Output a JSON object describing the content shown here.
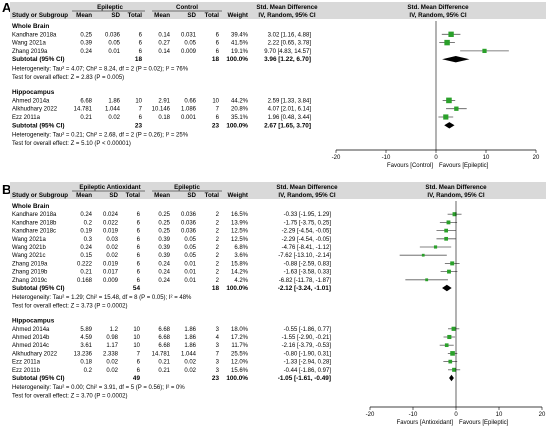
{
  "chart_data": [
    {
      "type": "forest",
      "panel_label": "A",
      "headers": {
        "study": "Study or Subgroup",
        "group1": "Epileptic",
        "group2": "Control",
        "mean": "Mean",
        "sd": "SD",
        "total": "Total",
        "weight": "Weight",
        "effect_title": "Std. Mean Difference",
        "effect_subtitle": "IV, Random, 95% CI"
      },
      "axis": {
        "min": -20,
        "max": 20,
        "ticks": [
          -20,
          -10,
          0,
          10,
          20
        ],
        "tick_labels": [
          "-20",
          "-10",
          "0",
          "10",
          "20"
        ],
        "left_label": "Favours [Control]",
        "right_label": "Favours [Epileptic]"
      },
      "groups": [
        {
          "name": "Whole Brain",
          "studies": [
            {
              "study": "Kandhare 2018a",
              "m1": "0.25",
              "sd1": "0.036",
              "n1": "6",
              "m2": "0.14",
              "sd2": "0.031",
              "n2": "6",
              "weight": "39.4%",
              "ci_text": "3.02 [1.16, 4.88]",
              "smd": 3.02,
              "lo": 1.16,
              "hi": 4.88,
              "w": 39.4
            },
            {
              "study": "Wang 2021a",
              "m1": "0.39",
              "sd1": "0.05",
              "n1": "6",
              "m2": "0.27",
              "sd2": "0.05",
              "n2": "6",
              "weight": "41.5%",
              "ci_text": "2.22 [0.65, 3.78]",
              "smd": 2.22,
              "lo": 0.65,
              "hi": 3.78,
              "w": 41.5
            },
            {
              "study": "Zhang 2019a",
              "m1": "0.24",
              "sd1": "0.01",
              "n1": "6",
              "m2": "0.14",
              "sd2": "0.009",
              "n2": "6",
              "weight": "19.1%",
              "ci_text": "9.70 [4.83, 14.57]",
              "smd": 9.7,
              "lo": 4.83,
              "hi": 14.57,
              "w": 19.1
            }
          ],
          "subtotal": {
            "label": "Subtotal (95% CI)",
            "n1": "18",
            "n2": "18",
            "weight": "100.0%",
            "ci_text": "3.96 [1.22, 6.70]",
            "smd": 3.96,
            "lo": 1.22,
            "hi": 6.7
          },
          "heterogeneity": "Heterogeneity: Tau² = 4.07; Chi² = 8.24, df = 2 (P = 0.02); I² = 76%",
          "overall_test": "Test for overall effect: Z = 2.83 (P = 0.005)"
        },
        {
          "name": "Hippocampus",
          "studies": [
            {
              "study": "Ahmed 2014a",
              "m1": "6.68",
              "sd1": "1.86",
              "n1": "10",
              "m2": "2.91",
              "sd2": "0.66",
              "n2": "10",
              "weight": "44.2%",
              "ci_text": "2.59 [1.33, 3.84]",
              "smd": 2.59,
              "lo": 1.33,
              "hi": 3.84,
              "w": 44.2
            },
            {
              "study": "Alkhudhary 2022",
              "m1": "14.781",
              "sd1": "1.044",
              "n1": "7",
              "m2": "10.146",
              "sd2": "1.086",
              "n2": "7",
              "weight": "20.8%",
              "ci_text": "4.07 [2.01, 6.14]",
              "smd": 4.07,
              "lo": 2.01,
              "hi": 6.14,
              "w": 20.8
            },
            {
              "study": "Ezz 2011a",
              "m1": "0.21",
              "sd1": "0.02",
              "n1": "6",
              "m2": "0.18",
              "sd2": "0.001",
              "n2": "6",
              "weight": "35.1%",
              "ci_text": "1.96 [0.48, 3.44]",
              "smd": 1.96,
              "lo": 0.48,
              "hi": 3.44,
              "w": 35.1
            }
          ],
          "subtotal": {
            "label": "Subtotal (95% CI)",
            "n1": "23",
            "n2": "23",
            "weight": "100.0%",
            "ci_text": "2.67 [1.65, 3.70]",
            "smd": 2.67,
            "lo": 1.65,
            "hi": 3.7
          },
          "heterogeneity": "Heterogeneity: Tau² = 0.21; Chi² = 2.68, df = 2 (P = 0.26); I² = 25%",
          "overall_test": "Test for overall effect: Z = 5.10 (P < 0.00001)"
        }
      ]
    },
    {
      "type": "forest",
      "panel_label": "B",
      "headers": {
        "study": "Study or Subgroup",
        "group1": "Epileptic Antioxidant",
        "group2": "Epileptic",
        "mean": "Mean",
        "sd": "SD",
        "total": "Total",
        "weight": "Weight",
        "effect_title": "Std. Mean Difference",
        "effect_subtitle": "IV, Random, 95% CI"
      },
      "axis": {
        "min": -20,
        "max": 20,
        "ticks": [
          -20,
          -10,
          0,
          10,
          20
        ],
        "tick_labels": [
          "-20",
          "-10",
          "0",
          "10",
          "20"
        ],
        "left_label": "Favours [Antioxidant]",
        "right_label": "Favours [Epileptic]"
      },
      "groups": [
        {
          "name": "Whole Brain",
          "studies": [
            {
              "study": "Kandhare 2018a",
              "m1": "0.24",
              "sd1": "0.024",
              "n1": "6",
              "m2": "0.25",
              "sd2": "0.036",
              "n2": "2",
              "weight": "16.5%",
              "ci_text": "-0.33 [-1.95, 1.29]",
              "smd": -0.33,
              "lo": -1.95,
              "hi": 1.29,
              "w": 16.5
            },
            {
              "study": "Kandhare 2018b",
              "m1": "0.2",
              "sd1": "0.022",
              "n1": "6",
              "m2": "0.25",
              "sd2": "0.036",
              "n2": "2",
              "weight": "13.9%",
              "ci_text": "-1.75 [-3.75, 0.25]",
              "smd": -1.75,
              "lo": -3.75,
              "hi": 0.25,
              "w": 13.9
            },
            {
              "study": "Kandhare 2018c",
              "m1": "0.19",
              "sd1": "0.019",
              "n1": "6",
              "m2": "0.25",
              "sd2": "0.036",
              "n2": "2",
              "weight": "12.5%",
              "ci_text": "-2.29 [-4.54, -0.05]",
              "smd": -2.29,
              "lo": -4.54,
              "hi": -0.05,
              "w": 12.5
            },
            {
              "study": "Wang 2021a",
              "m1": "0.3",
              "sd1": "0.03",
              "n1": "6",
              "m2": "0.39",
              "sd2": "0.05",
              "n2": "2",
              "weight": "12.5%",
              "ci_text": "-2.29 [-4.54, -0.05]",
              "smd": -2.29,
              "lo": -4.54,
              "hi": -0.05,
              "w": 12.5
            },
            {
              "study": "Wang 2021b",
              "m1": "0.24",
              "sd1": "0.02",
              "n1": "6",
              "m2": "0.39",
              "sd2": "0.05",
              "n2": "2",
              "weight": "6.8%",
              "ci_text": "-4.76 [-8.41, -1.12]",
              "smd": -4.76,
              "lo": -8.41,
              "hi": -1.12,
              "w": 6.8
            },
            {
              "study": "Wang 2021c",
              "m1": "0.15",
              "sd1": "0.02",
              "n1": "6",
              "m2": "0.39",
              "sd2": "0.05",
              "n2": "2",
              "weight": "3.6%",
              "ci_text": "-7.62 [-13.10, -2.14]",
              "smd": -7.62,
              "lo": -13.1,
              "hi": -2.14,
              "w": 3.6
            },
            {
              "study": "Zhang 2019a",
              "m1": "0.222",
              "sd1": "0.019",
              "n1": "6",
              "m2": "0.24",
              "sd2": "0.01",
              "n2": "2",
              "weight": "15.8%",
              "ci_text": "-0.88 [-2.59, 0.83]",
              "smd": -0.88,
              "lo": -2.59,
              "hi": 0.83,
              "w": 15.8
            },
            {
              "study": "Zhang 2019b",
              "m1": "0.21",
              "sd1": "0.017",
              "n1": "6",
              "m2": "0.24",
              "sd2": "0.01",
              "n2": "2",
              "weight": "14.2%",
              "ci_text": "-1.63 [-3.58, 0.33]",
              "smd": -1.63,
              "lo": -3.58,
              "hi": 0.33,
              "w": 14.2
            },
            {
              "study": "Zhang 2019c",
              "m1": "0.168",
              "sd1": "0.009",
              "n1": "6",
              "m2": "0.24",
              "sd2": "0.01",
              "n2": "2",
              "weight": "4.2%",
              "ci_text": "-6.82 [-11.78, -1.87]",
              "smd": -6.82,
              "lo": -11.78,
              "hi": -1.87,
              "w": 4.2
            }
          ],
          "subtotal": {
            "label": "Subtotal (95% CI)",
            "n1": "54",
            "n2": "18",
            "weight": "100.0%",
            "ci_text": "-2.12 [-3.24, -1.01]",
            "smd": -2.12,
            "lo": -3.24,
            "hi": -1.01
          },
          "heterogeneity": "Heterogeneity: Tau² = 1.29; Chi² = 15.48, df = 8 (P = 0.05); I² = 48%",
          "overall_test": "Test for overall effect: Z = 3.73 (P = 0.0002)"
        },
        {
          "name": "Hippocampus",
          "studies": [
            {
              "study": "Ahmed 2014a",
              "m1": "5.89",
              "sd1": "1.2",
              "n1": "10",
              "m2": "6.68",
              "sd2": "1.86",
              "n2": "3",
              "weight": "18.0%",
              "ci_text": "-0.55 [-1.86, 0.77]",
              "smd": -0.55,
              "lo": -1.86,
              "hi": 0.77,
              "w": 18.0
            },
            {
              "study": "Ahmed 2014b",
              "m1": "4.59",
              "sd1": "0.98",
              "n1": "10",
              "m2": "6.68",
              "sd2": "1.86",
              "n2": "4",
              "weight": "17.2%",
              "ci_text": "-1.55 [-2.90, -0.21]",
              "smd": -1.55,
              "lo": -2.9,
              "hi": -0.21,
              "w": 17.2
            },
            {
              "study": "Ahmed 2014c",
              "m1": "3.61",
              "sd1": "1.17",
              "n1": "10",
              "m2": "6.68",
              "sd2": "1.86",
              "n2": "3",
              "weight": "11.7%",
              "ci_text": "-2.16 [-3.79, -0.53]",
              "smd": -2.16,
              "lo": -3.79,
              "hi": -0.53,
              "w": 11.7
            },
            {
              "study": "Alkhudhary 2022",
              "m1": "13.236",
              "sd1": "2.338",
              "n1": "7",
              "m2": "14.781",
              "sd2": "1.044",
              "n2": "7",
              "weight": "25.5%",
              "ci_text": "-0.80 [-1.90, 0.31]",
              "smd": -0.8,
              "lo": -1.9,
              "hi": 0.31,
              "w": 25.5
            },
            {
              "study": "Ezz 2011a",
              "m1": "0.18",
              "sd1": "0.02",
              "n1": "6",
              "m2": "0.21",
              "sd2": "0.02",
              "n2": "3",
              "weight": "12.0%",
              "ci_text": "-1.33 [-2.94, 0.28]",
              "smd": -1.33,
              "lo": -2.94,
              "hi": 0.28,
              "w": 12.0
            },
            {
              "study": "Ezz 2011b",
              "m1": "0.2",
              "sd1": "0.02",
              "n1": "6",
              "m2": "0.21",
              "sd2": "0.02",
              "n2": "3",
              "weight": "15.6%",
              "ci_text": "-0.44 [-1.86, 0.97]",
              "smd": -0.44,
              "lo": -1.86,
              "hi": 0.97,
              "w": 15.6
            }
          ],
          "subtotal": {
            "label": "Subtotal (95% CI)",
            "n1": "49",
            "n2": "23",
            "weight": "100.0%",
            "ci_text": "-1.05 [-1.61, -0.49]",
            "smd": -1.05,
            "lo": -1.61,
            "hi": -0.49
          },
          "heterogeneity": "Heterogeneity: Tau² = 0.00; Chi² = 3.91, df = 5 (P = 0.56); I² = 0%",
          "overall_test": "Test for overall effect: Z = 3.70 (P = 0.0002)"
        }
      ]
    }
  ],
  "colors": {
    "header_band": "#d9d9d9",
    "study_marker": "#2aa02a",
    "ci_line": "#5a5a5a",
    "diamond": "#000000"
  }
}
